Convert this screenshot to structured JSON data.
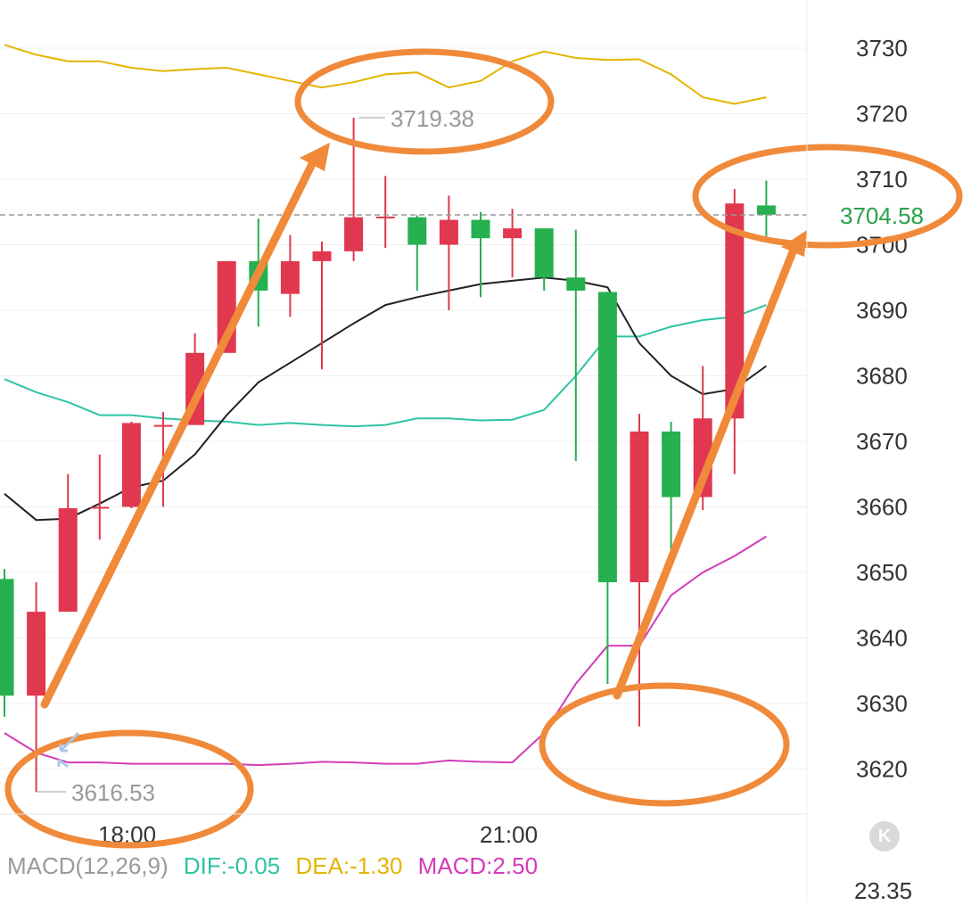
{
  "chart_data": {
    "type": "candlestick",
    "y_ticks": [
      3730,
      3720,
      3710,
      3700,
      3690,
      3680,
      3670,
      3660,
      3650,
      3640,
      3630,
      3620
    ],
    "y_tick_labels": [
      "3730",
      "3720",
      "3710",
      "3700",
      "3690",
      "3680",
      "3670",
      "3660",
      "3650",
      "3640",
      "3630",
      "3620"
    ],
    "x_labels": [
      "18:00",
      "21:00"
    ],
    "current_price": 3704.58,
    "current_price_label": "3704.58",
    "high_label": "3719.38",
    "low_label": "3616.53",
    "colors": {
      "up": "#e0384f",
      "down": "#26b04f",
      "ma": "#222222",
      "upper_band": "#e5b400",
      "mid_band": "#2ec4a3",
      "lower_band": "#d23cb9",
      "arrow": "#f08a3a"
    },
    "candles": [
      {
        "o": 3649.0,
        "h": 3650.5,
        "l": 3628.0,
        "c": 3631.2
      },
      {
        "o": 3631.2,
        "h": 3648.5,
        "l": 3616.53,
        "c": 3644.0
      },
      {
        "o": 3644.0,
        "h": 3665.0,
        "l": 3644.0,
        "c": 3659.8
      },
      {
        "o": 3660.0,
        "h": 3668.0,
        "l": 3655.0,
        "c": 3660.0
      },
      {
        "o": 3660.0,
        "h": 3673.0,
        "l": 3659.8,
        "c": 3672.8
      },
      {
        "o": 3672.5,
        "h": 3674.5,
        "l": 3660.0,
        "c": 3672.5
      },
      {
        "o": 3672.5,
        "h": 3686.5,
        "l": 3672.5,
        "c": 3683.5
      },
      {
        "o": 3683.5,
        "h": 3697.5,
        "l": 3683.5,
        "c": 3697.5
      },
      {
        "o": 3697.5,
        "h": 3704.0,
        "l": 3687.5,
        "c": 3693.0
      },
      {
        "o": 3692.5,
        "h": 3701.5,
        "l": 3689.0,
        "c": 3697.5
      },
      {
        "o": 3697.5,
        "h": 3700.5,
        "l": 3681.0,
        "c": 3699.0
      },
      {
        "o": 3699.0,
        "h": 3719.38,
        "l": 3697.5,
        "c": 3704.2
      },
      {
        "o": 3704.2,
        "h": 3710.5,
        "l": 3699.5,
        "c": 3704.3
      },
      {
        "o": 3704.2,
        "h": 3704.5,
        "l": 3693.0,
        "c": 3700.0
      },
      {
        "o": 3700.0,
        "h": 3707.5,
        "l": 3690.0,
        "c": 3703.8
      },
      {
        "o": 3703.8,
        "h": 3705.0,
        "l": 3692.0,
        "c": 3701.0
      },
      {
        "o": 3701.0,
        "h": 3705.5,
        "l": 3695.0,
        "c": 3702.5
      },
      {
        "o": 3702.5,
        "h": 3702.5,
        "l": 3693.0,
        "c": 3695.0
      },
      {
        "o": 3695.0,
        "h": 3702.3,
        "l": 3667.0,
        "c": 3693.0
      },
      {
        "o": 3692.8,
        "h": 3692.8,
        "l": 3633.0,
        "c": 3648.5
      },
      {
        "o": 3648.5,
        "h": 3674.2,
        "l": 3626.5,
        "c": 3671.5
      },
      {
        "o": 3671.5,
        "h": 3673.0,
        "l": 3653.0,
        "c": 3661.5
      },
      {
        "o": 3661.5,
        "h": 3681.5,
        "l": 3659.5,
        "c": 3673.5
      },
      {
        "o": 3673.5,
        "h": 3708.5,
        "l": 3665.0,
        "c": 3706.3
      },
      {
        "o": 3706.0,
        "h": 3709.8,
        "l": 3701.0,
        "c": 3704.58
      }
    ],
    "ma_line": [
      3662.0,
      3658.0,
      3658.2,
      3660.5,
      3663.0,
      3664.0,
      3668.0,
      3674.0,
      3679.0,
      3682.0,
      3685.0,
      3688.0,
      3690.8,
      3692.0,
      3693.0,
      3694.0,
      3694.5,
      3695.0,
      3694.5,
      3693.5,
      3685.0,
      3680.0,
      3677.2,
      3678.0,
      3681.5
    ],
    "upper_band": [
      3730.5,
      3729.0,
      3728.0,
      3728.0,
      3727.0,
      3726.5,
      3726.8,
      3727.0,
      3726.0,
      3725.0,
      3724.0,
      3724.8,
      3726.0,
      3726.3,
      3724.0,
      3725.0,
      3728.0,
      3729.5,
      3728.5,
      3728.2,
      3728.3,
      3726.0,
      3722.5,
      3721.5,
      3722.5
    ],
    "mid_band": [
      3679.5,
      3677.5,
      3676.0,
      3674.0,
      3674.0,
      3673.5,
      3673.2,
      3673.0,
      3672.5,
      3672.8,
      3672.5,
      3672.3,
      3672.5,
      3673.5,
      3673.5,
      3673.2,
      3673.3,
      3674.8,
      3680.0,
      3686.0,
      3686.0,
      3687.5,
      3688.5,
      3689.0,
      3690.8
    ],
    "lower_band": [
      3625.5,
      3622.5,
      3621.0,
      3621.0,
      3620.8,
      3620.8,
      3620.8,
      3620.8,
      3620.6,
      3620.8,
      3621.1,
      3621.0,
      3620.8,
      3620.8,
      3621.3,
      3621.1,
      3621.0,
      3625.5,
      3633.0,
      3638.8,
      3638.8,
      3646.5,
      3650.0,
      3652.5,
      3655.5
    ]
  },
  "macd_panel": {
    "title": "MACD(12,26,9)",
    "dif": "DIF:-0.05",
    "dea": "DEA:-1.30",
    "macd": "MACD:2.50",
    "value_label": "23.35"
  },
  "kline_button": {
    "label": "K"
  }
}
